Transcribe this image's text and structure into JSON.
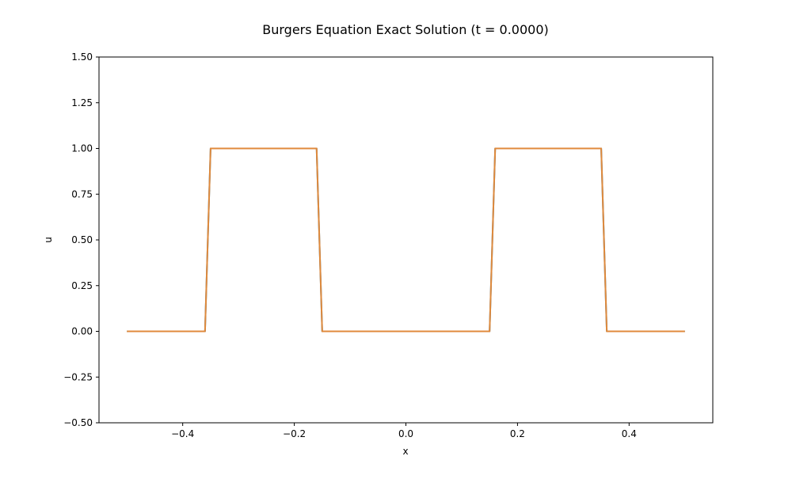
{
  "chart_data": {
    "type": "line",
    "title": "Burgers Equation Exact Solution (t = 0.0000)",
    "xlabel": "x",
    "ylabel": "u",
    "xlim": [
      -0.55,
      0.55
    ],
    "ylim": [
      -0.5,
      1.5
    ],
    "xticks": [
      {
        "value": -0.4,
        "label": "−0.4"
      },
      {
        "value": -0.2,
        "label": "−0.2"
      },
      {
        "value": 0.0,
        "label": "0.0"
      },
      {
        "value": 0.2,
        "label": "0.2"
      },
      {
        "value": 0.4,
        "label": "0.4"
      }
    ],
    "yticks": [
      {
        "value": -0.5,
        "label": "−0.50"
      },
      {
        "value": -0.25,
        "label": "−0.25"
      },
      {
        "value": 0.0,
        "label": "0.00"
      },
      {
        "value": 0.25,
        "label": "0.25"
      },
      {
        "value": 0.5,
        "label": "0.50"
      },
      {
        "value": 0.75,
        "label": "0.75"
      },
      {
        "value": 1.0,
        "label": "1.00"
      },
      {
        "value": 1.25,
        "label": "1.25"
      },
      {
        "value": 1.5,
        "label": "1.50"
      }
    ],
    "grid": false,
    "legend": "none",
    "series": [
      {
        "color": "#1f77b4",
        "x": [
          -0.5,
          -0.36,
          -0.35,
          -0.16,
          -0.15,
          0.15,
          0.16,
          0.35,
          0.36,
          0.5
        ],
        "y": [
          0,
          0,
          1,
          1,
          0,
          0,
          1,
          1,
          0,
          0
        ]
      },
      {
        "color": "#e08a3c",
        "x": [
          -0.5,
          -0.36,
          -0.35,
          -0.16,
          -0.15,
          0.15,
          0.16,
          0.35,
          0.36,
          0.5
        ],
        "y": [
          0,
          0,
          1,
          1,
          0,
          0,
          1,
          1,
          0,
          0
        ]
      }
    ]
  }
}
